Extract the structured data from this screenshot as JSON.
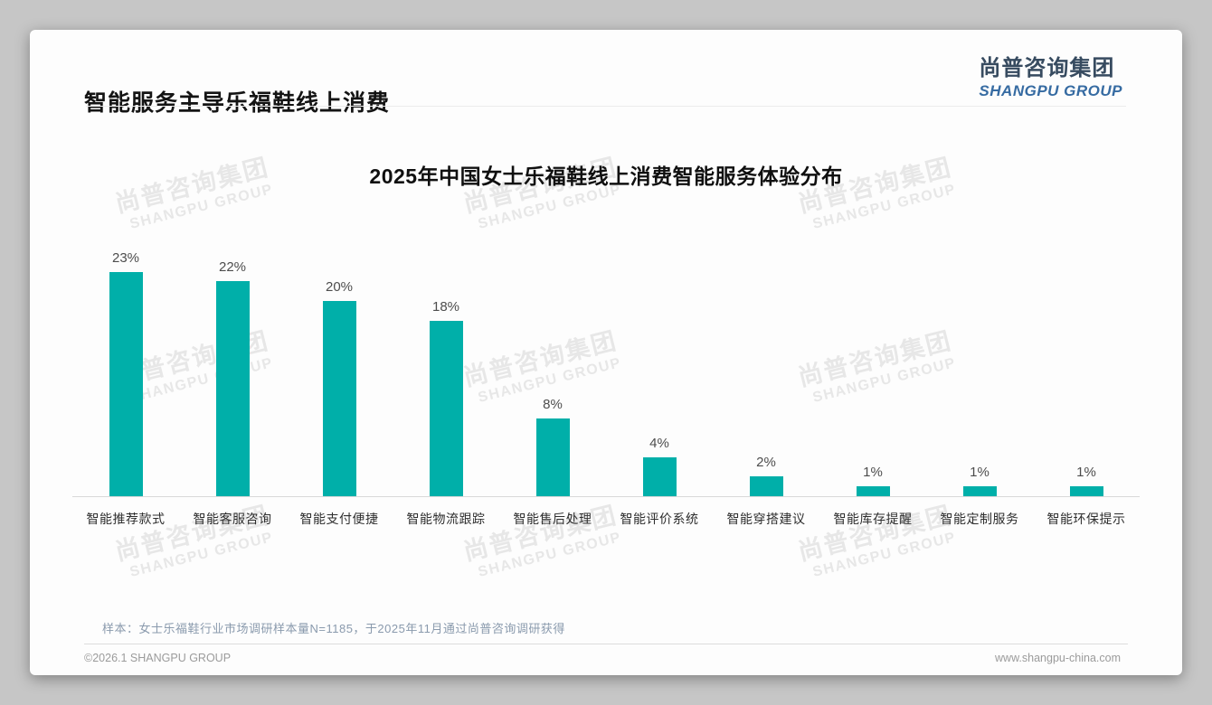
{
  "header": {
    "title": "智能服务主导乐福鞋线上消费"
  },
  "logo": {
    "name_cn": "尚普咨询集团",
    "name_en": "SHANGPU GROUP"
  },
  "watermark": {
    "line1": "尚普咨询集团",
    "line2": "SHANGPU GROUP"
  },
  "chart_data": {
    "type": "bar",
    "title": "2025年中国女士乐福鞋线上消费智能服务体验分布",
    "categories": [
      "智能推荐款式",
      "智能客服咨询",
      "智能支付便捷",
      "智能物流跟踪",
      "智能售后处理",
      "智能评价系统",
      "智能穿搭建议",
      "智能库存提醒",
      "智能定制服务",
      "智能环保提示"
    ],
    "values": [
      23,
      22,
      20,
      18,
      8,
      4,
      2,
      1,
      1,
      1
    ],
    "unit": "%",
    "value_labels": [
      "23%",
      "22%",
      "20%",
      "18%",
      "8%",
      "4%",
      "2%",
      "1%",
      "1%",
      "1%"
    ],
    "bar_color": "#00AFA9",
    "ylim": [
      0,
      25
    ],
    "grid": false,
    "legend": false,
    "xlabel": "",
    "ylabel": ""
  },
  "footer": {
    "note": "样本：女士乐福鞋行业市场调研样本量N=1185，于2025年11月通过尚普咨询调研获得",
    "copyright": "©2026.1 SHANGPU GROUP",
    "website": "www.shangpu-china.com"
  },
  "colors": {
    "accent_teal": "#00AFA9",
    "logo_navy": "#374B60",
    "logo_blue": "#366BA2",
    "note_blue_gray": "#8A9AAD",
    "page_background": "#C6C6C6",
    "card_background": "#FDFDFD"
  }
}
